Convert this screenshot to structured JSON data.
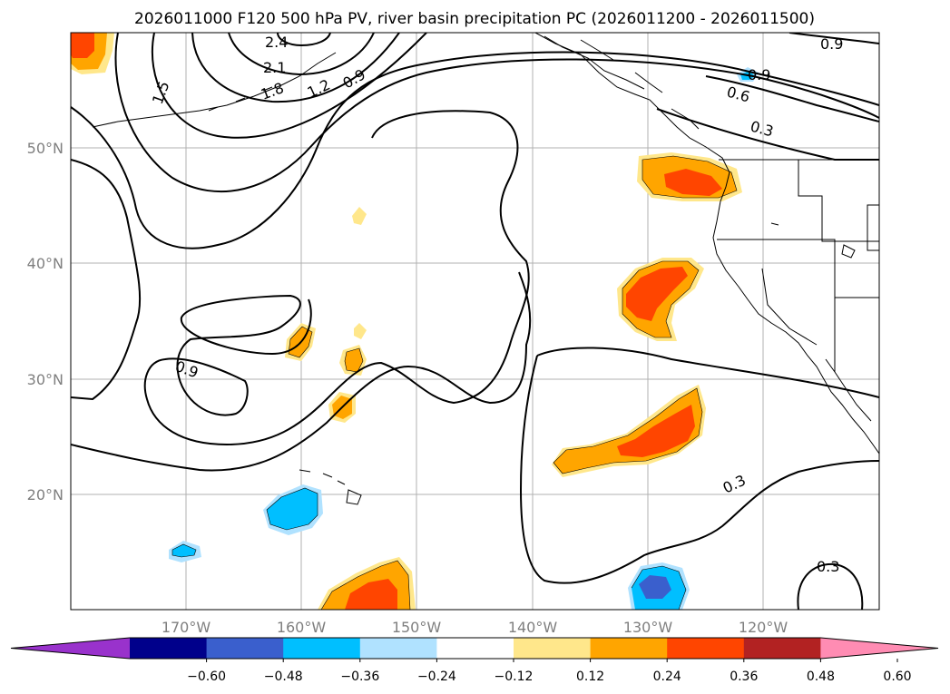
{
  "title": "2026011000 F120 500 hPa PV, river basin precipitation PC (2026011200 - 2026011500)",
  "map": {
    "lon_labels": [
      "170°W",
      "160°W",
      "150°W",
      "140°W",
      "130°W",
      "120°W"
    ],
    "lat_labels": [
      "50°N",
      "40°N",
      "30°N",
      "20°N"
    ],
    "gridlines": true
  },
  "contour_labels": [
    "2.4",
    "2.1",
    "1.8",
    "1.5",
    "1.2",
    "0.9",
    "0.9",
    "0.9",
    "0.6",
    "0.3",
    "0.9",
    "0.3",
    "0.3"
  ],
  "colorbar": {
    "tick_labels": [
      "−0.60",
      "−0.48",
      "−0.36",
      "−0.24",
      "−0.12",
      "0.12",
      "0.24",
      "0.36",
      "0.48",
      "0.60"
    ],
    "colors": [
      "#9932cc",
      "#00008b",
      "#3a5fcd",
      "#00bfff",
      "#b0e2ff",
      "#ffffff",
      "#ffe78b",
      "#ffa500",
      "#ff4500",
      "#b22222",
      "#ff8cb3"
    ]
  }
}
